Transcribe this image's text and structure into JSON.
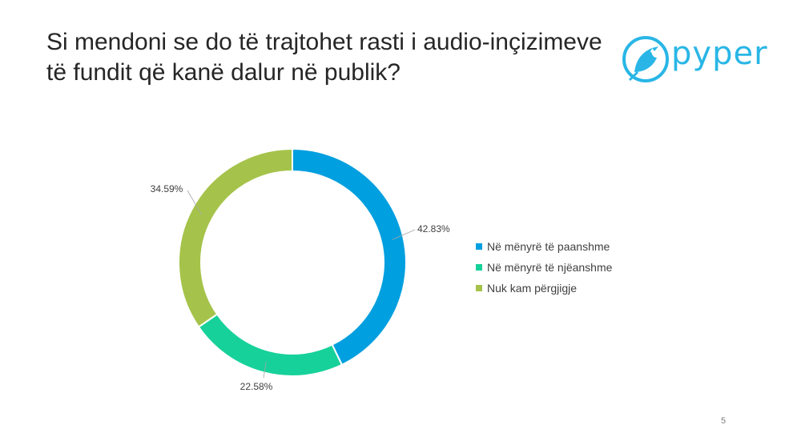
{
  "slide": {
    "title": "Si mendoni se do të trajtohet rasti i audio-inçizimeve të fundit që kanë dalur në publik?",
    "page_number": "5",
    "brand": {
      "name": "pyper",
      "color": "#29b6e6"
    }
  },
  "chart_data": {
    "type": "pie",
    "style": "donut",
    "title": "",
    "legend_position": "right",
    "series": [
      {
        "name": "Në mënyrë të paanshme",
        "value": 42.83,
        "label": "42.83%",
        "color": "#009fdf"
      },
      {
        "name": "Në mënyrë të njëanshme",
        "value": 22.58,
        "label": "22.58%",
        "color": "#17d19a"
      },
      {
        "name": "Nuk kam përgjigje",
        "value": 34.59,
        "label": "34.59%",
        "color": "#a5c34a"
      }
    ]
  }
}
